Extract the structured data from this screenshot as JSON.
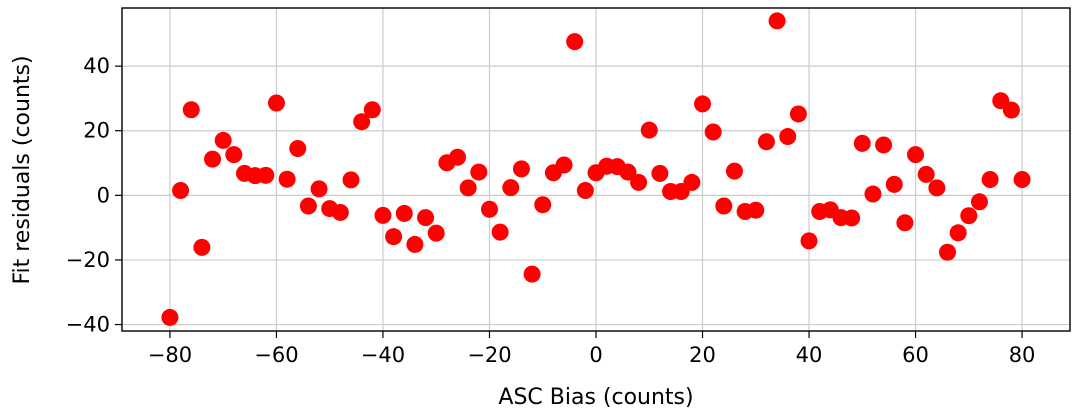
{
  "chart_data": {
    "type": "scatter",
    "xlabel": "ASC Bias (counts)",
    "ylabel": "Fit residuals (counts)",
    "xlim": [
      -89,
      89
    ],
    "ylim": [
      -42,
      58
    ],
    "xticks": [
      -80,
      -60,
      -40,
      -20,
      0,
      20,
      40,
      60,
      80
    ],
    "yticks": [
      -40,
      -20,
      0,
      20,
      40
    ],
    "grid": true,
    "marker_color": "#ff0000",
    "series": [
      {
        "x": [
          -80,
          -78,
          -76,
          -74,
          -72,
          -70,
          -68,
          -66,
          -64,
          -62,
          -60,
          -58,
          -56,
          -54,
          -52,
          -50,
          -48,
          -46,
          -44,
          -42,
          -40,
          -38,
          -36,
          -34,
          -32,
          -30,
          -28,
          -26,
          -24,
          -22,
          -20,
          -18,
          -16,
          -14,
          -12,
          -10,
          -8,
          -6,
          -4,
          -2,
          0,
          2,
          4,
          6,
          8,
          10,
          12,
          14,
          16,
          18,
          20,
          22,
          24,
          26,
          28,
          30,
          32,
          34,
          36,
          38,
          40,
          42,
          44,
          46,
          48,
          50,
          52,
          54,
          56,
          58,
          60,
          62,
          64,
          66,
          68,
          70,
          72,
          74,
          76,
          78,
          80
        ],
        "y": [
          -37.8,
          1.5,
          26.5,
          -16.1,
          11.2,
          17.0,
          12.6,
          6.8,
          6.1,
          6.2,
          28.6,
          5.0,
          14.5,
          -3.3,
          2.0,
          -4.1,
          -5.3,
          4.8,
          22.8,
          26.5,
          -6.2,
          -12.8,
          -5.6,
          -15.2,
          -6.9,
          -11.7,
          10.1,
          11.8,
          2.3,
          7.2,
          -4.3,
          -11.4,
          2.4,
          8.2,
          -24.4,
          -2.9,
          7.0,
          9.4,
          47.6,
          1.5,
          7.0,
          9.0,
          8.9,
          7.2,
          4.0,
          20.2,
          6.8,
          1.2,
          1.2,
          4.0,
          28.3,
          19.6,
          -3.3,
          7.5,
          -5.0,
          -4.6,
          16.6,
          54.0,
          18.2,
          25.2,
          -14.1,
          -5.0,
          -4.5,
          -6.9,
          -7.0,
          16.1,
          0.4,
          15.6,
          3.4,
          -8.5,
          12.6,
          6.5,
          2.3,
          -17.6,
          -11.6,
          -6.3,
          -2.0,
          4.9,
          29.3,
          26.4,
          4.9
        ]
      }
    ]
  }
}
